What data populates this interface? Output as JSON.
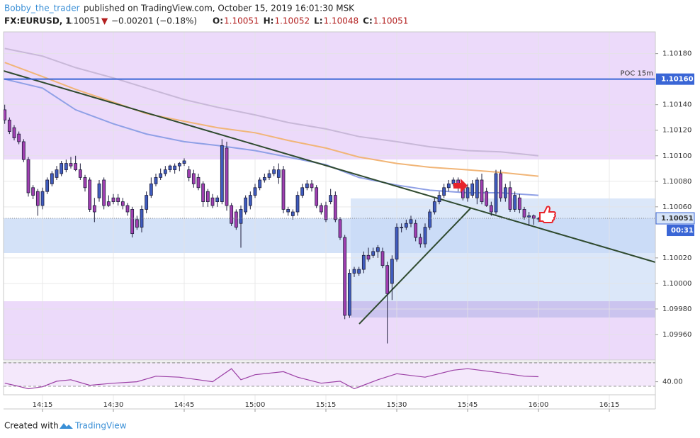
{
  "header": {
    "author": "Bobby_the_trader",
    "published": " published on TradingView.com, October 15, 2019 16:01:30 MSK",
    "symbol": "FX:EURUSD, 1",
    "last": "1.10051",
    "arrow": "▼",
    "change": "−0.00201 (−0.18%)",
    "ohlc": [
      {
        "key": "O:",
        "value": "1.10051"
      },
      {
        "key": "H:",
        "value": "1.10052"
      },
      {
        "key": "L:",
        "value": "1.10048"
      },
      {
        "key": "C:",
        "value": "1.10051"
      }
    ]
  },
  "footer": {
    "created": "Created with",
    "brand": "TradingView"
  },
  "chart_data": {
    "type": "candlestick",
    "up_color": "#3f5cbf",
    "down_color": "#a13fb1",
    "xlim": [
      846.75,
      984.75
    ],
    "xticks": [
      {
        "value": 855,
        "label": "14:15"
      },
      {
        "value": 870,
        "label": "14:30"
      },
      {
        "value": 885,
        "label": "14:45"
      },
      {
        "value": 900,
        "label": "15:00"
      },
      {
        "value": 915,
        "label": "15:15"
      },
      {
        "value": 930,
        "label": "15:30"
      },
      {
        "value": 945,
        "label": "15:45"
      },
      {
        "value": 960,
        "label": "16:00"
      },
      {
        "value": 975,
        "label": "16:15"
      }
    ],
    "ylim": [
      1.0994,
      1.10197
    ],
    "yticks": [
      {
        "value": 1.1018,
        "label": "1.10180"
      },
      {
        "value": 1.1014,
        "label": "1.10140"
      },
      {
        "value": 1.1012,
        "label": "1.10120"
      },
      {
        "value": 1.101,
        "label": "1.10100"
      },
      {
        "value": 1.1008,
        "label": "1.10080"
      },
      {
        "value": 1.1006,
        "label": "1.10060"
      },
      {
        "value": 1.1002,
        "label": "1.10020"
      },
      {
        "value": 1.1,
        "label": "1.10000"
      },
      {
        "value": 1.0998,
        "label": "1.09980"
      },
      {
        "value": 1.0996,
        "label": "1.09960"
      }
    ],
    "grid": true,
    "x": [
      847,
      848,
      849,
      850,
      851,
      852,
      853,
      854,
      855,
      856,
      857,
      858,
      859,
      860,
      861,
      862,
      863,
      864,
      865,
      866,
      867,
      868,
      869,
      870,
      871,
      872,
      873,
      874,
      875,
      876,
      877,
      878,
      879,
      880,
      881,
      882,
      883,
      884,
      885,
      886,
      887,
      888,
      889,
      890,
      891,
      892,
      893,
      894,
      895,
      896,
      897,
      898,
      899,
      900,
      901,
      902,
      903,
      904,
      905,
      906,
      907,
      908,
      909,
      910,
      911,
      912,
      913,
      914,
      915,
      916,
      917,
      918,
      919,
      920,
      921,
      922,
      923,
      924,
      925,
      926,
      927,
      928,
      929,
      930,
      931,
      932,
      933,
      934,
      935,
      936,
      937,
      938,
      939,
      940,
      941,
      942,
      943,
      944,
      945,
      946,
      947,
      948,
      949,
      950,
      951,
      952,
      953,
      954,
      955,
      956,
      957,
      958,
      959,
      960
    ],
    "open": [
      1.10136,
      1.10128,
      1.10122,
      1.10117,
      1.10111,
      1.10097,
      1.10075,
      1.10072,
      1.10061,
      1.10072,
      1.10078,
      1.10083,
      1.10086,
      1.10089,
      1.10094,
      1.10094,
      1.10089,
      1.10083,
      1.10081,
      1.10061,
      1.10067,
      1.10081,
      1.10064,
      1.10067,
      1.10067,
      1.10064,
      1.10061,
      1.10058,
      1.1005,
      1.10044,
      1.10058,
      1.10069,
      1.10078,
      1.10083,
      1.10086,
      1.10089,
      1.10089,
      1.10092,
      1.10094,
      1.10089,
      1.10086,
      1.10083,
      1.10078,
      1.10072,
      1.10067,
      1.10064,
      1.10064,
      1.10106,
      1.10061,
      1.10056,
      1.10047,
      1.10056,
      1.10061,
      1.10069,
      1.10075,
      1.10081,
      1.10083,
      1.10086,
      1.10083,
      1.10089,
      1.10056,
      1.10053,
      1.10056,
      1.10069,
      1.10075,
      1.10078,
      1.10075,
      1.10061,
      1.10061,
      1.10064,
      1.10069,
      1.1005,
      1.10036,
      1.09975,
      1.10008,
      1.10008,
      1.10011,
      1.10022,
      1.10022,
      1.10025,
      1.10025,
      1.10014,
      1.1,
      1.10019,
      1.10044,
      1.10044,
      1.10047,
      1.10047,
      1.10036,
      1.10031,
      1.10044,
      1.10056,
      1.10064,
      1.10069,
      1.10075,
      1.10078,
      1.10081,
      1.10075,
      1.10067,
      1.10069,
      1.10067,
      1.10081,
      1.10072,
      1.10061,
      1.10056,
      1.10086,
      1.10067,
      1.10075,
      1.10058,
      1.10067,
      1.10058,
      1.10052,
      1.10053,
      1.10051
    ],
    "high": [
      1.1014,
      1.1013,
      1.10124,
      1.10119,
      1.10113,
      1.10099,
      1.10077,
      1.10074,
      1.10075,
      1.10083,
      1.10088,
      1.10092,
      1.10096,
      1.10097,
      1.10099,
      1.101,
      1.10094,
      1.10085,
      1.10083,
      1.10067,
      1.10081,
      1.10083,
      1.10069,
      1.1007,
      1.1007,
      1.10067,
      1.10063,
      1.1006,
      1.10053,
      1.10061,
      1.10072,
      1.10083,
      1.10086,
      1.1009,
      1.10092,
      1.10093,
      1.10094,
      1.10095,
      1.10098,
      1.10092,
      1.10089,
      1.10086,
      1.1008,
      1.10074,
      1.1007,
      1.10069,
      1.10113,
      1.10111,
      1.10063,
      1.10058,
      1.10061,
      1.10069,
      1.10072,
      1.10078,
      1.10083,
      1.10086,
      1.10089,
      1.10092,
      1.10094,
      1.10092,
      1.1006,
      1.10058,
      1.10072,
      1.10078,
      1.10081,
      1.10081,
      1.10077,
      1.10063,
      1.10064,
      1.10074,
      1.10072,
      1.10052,
      1.10038,
      1.10011,
      1.10013,
      1.10013,
      1.10025,
      1.10028,
      1.10028,
      1.1003,
      1.10028,
      1.10017,
      1.10022,
      1.10047,
      1.10047,
      1.1005,
      1.10053,
      1.1005,
      1.10039,
      1.10047,
      1.10058,
      1.10067,
      1.10072,
      1.10078,
      1.10081,
      1.10083,
      1.10083,
      1.10078,
      1.10078,
      1.10081,
      1.10083,
      1.10086,
      1.10075,
      1.10064,
      1.10089,
      1.10089,
      1.10078,
      1.1008,
      1.10072,
      1.1007,
      1.1006,
      1.10056,
      1.10054,
      1.10052
    ],
    "low": [
      1.10125,
      1.10117,
      1.10112,
      1.10109,
      1.10095,
      1.10068,
      1.10066,
      1.10053,
      1.10058,
      1.1007,
      1.10076,
      1.10081,
      1.10084,
      1.10087,
      1.1009,
      1.10088,
      1.10081,
      1.10072,
      1.10056,
      1.10048,
      1.10064,
      1.10058,
      1.1006,
      1.10062,
      1.10061,
      1.10058,
      1.10053,
      1.10036,
      1.10042,
      1.1004,
      1.10055,
      1.10067,
      1.10076,
      1.10081,
      1.10084,
      1.10087,
      1.10086,
      1.10088,
      1.10092,
      1.1008,
      1.10075,
      1.10073,
      1.1006,
      1.1006,
      1.10059,
      1.1006,
      1.10062,
      1.10057,
      1.10045,
      1.10042,
      1.10028,
      1.10054,
      1.10058,
      1.10067,
      1.10073,
      1.10079,
      1.10081,
      1.10084,
      1.10078,
      1.10055,
      1.10053,
      1.1005,
      1.10053,
      1.10067,
      1.10073,
      1.10072,
      1.10059,
      1.10054,
      1.10048,
      1.10062,
      1.10048,
      1.10034,
      1.09972,
      1.09973,
      1.10005,
      1.10006,
      1.10008,
      1.10017,
      1.1002,
      1.1002,
      1.10012,
      1.09953,
      1.09987,
      1.10017,
      1.1004,
      1.10042,
      1.10044,
      1.10033,
      1.10028,
      1.10028,
      1.10042,
      1.10054,
      1.10062,
      1.10067,
      1.10072,
      1.10076,
      1.10072,
      1.10065,
      1.10064,
      1.10067,
      1.10062,
      1.10062,
      1.1006,
      1.10053,
      1.10054,
      1.10064,
      1.10064,
      1.10056,
      1.10056,
      1.10055,
      1.1005,
      1.10045,
      1.10046,
      1.10048
    ],
    "close": [
      1.10128,
      1.10119,
      1.10114,
      1.10111,
      1.10097,
      1.10071,
      1.10069,
      1.10061,
      1.10072,
      1.10081,
      1.10086,
      1.10089,
      1.10094,
      1.10094,
      1.10092,
      1.10089,
      1.10083,
      1.10075,
      1.10058,
      1.10056,
      1.10078,
      1.10061,
      1.10061,
      1.10064,
      1.10064,
      1.10061,
      1.10056,
      1.10039,
      1.10044,
      1.10058,
      1.10069,
      1.10078,
      1.10083,
      1.10086,
      1.10089,
      1.10092,
      1.10092,
      1.10094,
      1.10096,
      1.10083,
      1.10078,
      1.10075,
      1.10064,
      1.10064,
      1.10061,
      1.10067,
      1.10108,
      1.10061,
      1.10047,
      1.10044,
      1.10058,
      1.10067,
      1.10069,
      1.10075,
      1.10081,
      1.10083,
      1.10086,
      1.10089,
      1.10089,
      1.10058,
      1.10058,
      1.10056,
      1.10069,
      1.10075,
      1.10078,
      1.10075,
      1.10061,
      1.10056,
      1.1005,
      1.10069,
      1.1005,
      1.10036,
      1.09975,
      1.10008,
      1.10011,
      1.10011,
      1.10022,
      1.10019,
      1.10025,
      1.10028,
      1.10014,
      1.09992,
      1.10019,
      1.10044,
      1.10044,
      1.10047,
      1.1005,
      1.10036,
      1.10031,
      1.10044,
      1.10056,
      1.10064,
      1.10069,
      1.10075,
      1.10078,
      1.10081,
      1.10075,
      1.10067,
      1.10075,
      1.10078,
      1.10081,
      1.10064,
      1.10061,
      1.10056,
      1.10086,
      1.10067,
      1.10075,
      1.10058,
      1.10069,
      1.10058,
      1.10052,
      1.10053,
      1.10051,
      1.10051
    ],
    "averages": {
      "x": [
        847,
        855,
        862,
        870,
        877,
        885,
        892,
        900,
        907,
        915,
        922,
        930,
        937,
        945,
        952,
        960
      ],
      "series": [
        {
          "color": "#c8b8d8",
          "values": [
            1.10184,
            1.10178,
            1.10169,
            1.10161,
            1.10153,
            1.10144,
            1.10138,
            1.10132,
            1.10126,
            1.10121,
            1.10115,
            1.10111,
            1.10107,
            1.10104,
            1.10103,
            1.101
          ]
        },
        {
          "color": "#f1b577",
          "values": [
            1.10173,
            1.10162,
            1.10152,
            1.10142,
            1.10133,
            1.10127,
            1.10122,
            1.10118,
            1.10112,
            1.10106,
            1.10099,
            1.10094,
            1.10091,
            1.10089,
            1.10087,
            1.10084
          ]
        },
        {
          "color": "#8fa0e6",
          "values": [
            1.1016,
            1.10153,
            1.10136,
            1.10125,
            1.10117,
            1.10111,
            1.10108,
            1.10104,
            1.10099,
            1.10093,
            1.10083,
            1.10077,
            1.10073,
            1.10071,
            1.10071,
            1.10069
          ]
        }
      ]
    },
    "poc": {
      "name": "POC 15m",
      "value": 1.1016,
      "value_label": "1.10160",
      "color": "#3a66d6"
    },
    "last_price": {
      "value": 1.10051,
      "value_label": "1.10051",
      "countdown": "00:31"
    },
    "oscillator": {
      "color": "#9b3fa5",
      "ylim": [
        14,
        79
      ],
      "yticks": [
        {
          "value": 40,
          "label": "40.00"
        }
      ],
      "x": [
        847,
        849,
        852,
        855,
        858,
        861,
        865,
        870,
        875,
        879,
        884,
        888,
        891,
        895,
        897,
        900,
        906,
        909,
        914,
        918,
        921,
        926,
        930,
        936,
        942,
        945,
        951,
        957,
        960
      ],
      "values": [
        37,
        33,
        26,
        30,
        41,
        44,
        33,
        37,
        40,
        51,
        49,
        44,
        40,
        66,
        44,
        54,
        60,
        49,
        37,
        41,
        26,
        44,
        56,
        49,
        63,
        66,
        59,
        51,
        50
      ]
    }
  }
}
